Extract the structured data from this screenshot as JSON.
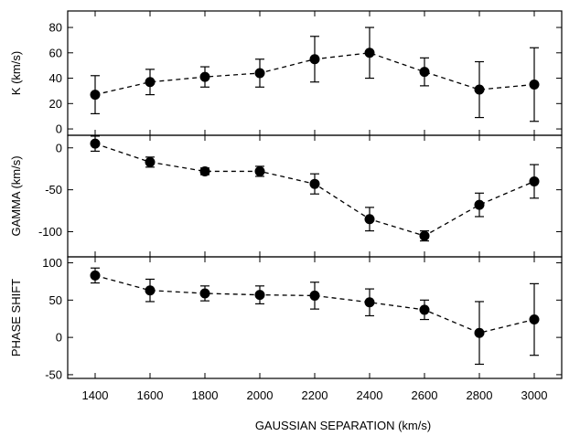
{
  "chart_data": [
    {
      "type": "scatter",
      "ylabel": "K (km/s)",
      "ylim": [
        -5,
        93
      ],
      "yticks": [
        0,
        20,
        40,
        60,
        80
      ],
      "x": [
        1400,
        1600,
        1800,
        2000,
        2200,
        2400,
        2600,
        2800,
        3000
      ],
      "series": [
        {
          "values": [
            27,
            37,
            41,
            44,
            55,
            60,
            45,
            31,
            35
          ],
          "errors": [
            15,
            10,
            8,
            11,
            18,
            20,
            11,
            22,
            29
          ]
        }
      ]
    },
    {
      "type": "scatter",
      "ylabel": "GAMMA (km/s)",
      "ylim": [
        -130,
        15
      ],
      "yticks": [
        0,
        -50,
        -100
      ],
      "x": [
        1400,
        1600,
        1800,
        2000,
        2200,
        2400,
        2600,
        2800,
        3000
      ],
      "series": [
        {
          "values": [
            5,
            -17,
            -28,
            -28,
            -43,
            -85,
            -105,
            -68,
            -40
          ],
          "errors": [
            9,
            6,
            4,
            6,
            12,
            14,
            6,
            14,
            20
          ]
        }
      ]
    },
    {
      "type": "scatter",
      "ylabel": "PHASE SHIFT",
      "ylim": [
        -55,
        108
      ],
      "yticks": [
        -50,
        0,
        50,
        100
      ],
      "x": [
        1400,
        1600,
        1800,
        2000,
        2200,
        2400,
        2600,
        2800,
        3000
      ],
      "series": [
        {
          "values": [
            83,
            63,
            59,
            57,
            56,
            47,
            37,
            6,
            24
          ],
          "errors": [
            10,
            15,
            10,
            12,
            18,
            18,
            13,
            42,
            48
          ]
        }
      ]
    }
  ],
  "x_axis": {
    "label": "GAUSSIAN SEPARATION (km/s)",
    "xlim": [
      1300,
      3100
    ],
    "ticks": [
      1400,
      1600,
      1800,
      2000,
      2200,
      2400,
      2600,
      2800,
      3000
    ]
  }
}
